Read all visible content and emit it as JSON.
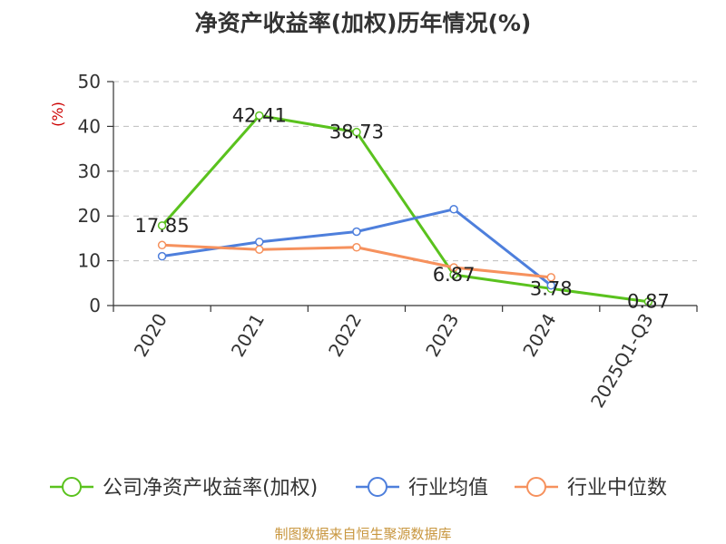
{
  "colors": {
    "roe": "#5ac21e",
    "industry_avg": "#4e7fdc",
    "industry_median": "#f6915d",
    "axis": "#333333",
    "grid": "#bdbdbd",
    "unit": "#cc0000",
    "footer": "#c8963e"
  },
  "chart_data": {
    "type": "line",
    "title": "净资产收益率(加权)历年情况(%)",
    "ylabel": "(%)",
    "xlabel": "",
    "ylim": [
      0,
      50
    ],
    "yticks": [
      0,
      10,
      20,
      30,
      40,
      50
    ],
    "grid": true,
    "legend_position": "bottom",
    "categories": [
      "2020",
      "2021",
      "2022",
      "2023",
      "2024",
      "2025Q1-Q3"
    ],
    "series": [
      {
        "name": "公司净资产收益率(加权)",
        "values": [
          17.85,
          42.41,
          38.73,
          6.87,
          3.78,
          0.87
        ],
        "labels": [
          "17.85",
          "42.41",
          "38.73",
          "6.87",
          "3.78",
          "0.87"
        ]
      },
      {
        "name": "行业均值",
        "values": [
          11.0,
          14.2,
          16.5,
          21.5,
          4.5,
          null
        ]
      },
      {
        "name": "行业中位数",
        "values": [
          13.5,
          12.5,
          13.0,
          8.5,
          6.3,
          null
        ]
      }
    ]
  },
  "footer": "制图数据来自恒生聚源数据库"
}
